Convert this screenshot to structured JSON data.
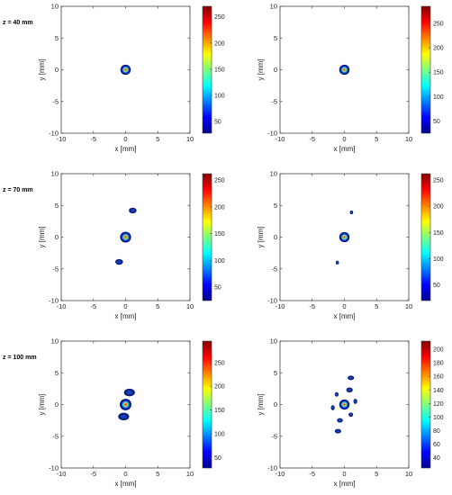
{
  "chart_data": [
    {
      "type": "heatmap",
      "row_label": "z = 40 mm",
      "xlabel": "x [mm]",
      "ylabel": "y [mm]",
      "xlim": [
        -10,
        10
      ],
      "ylim": [
        -10,
        10
      ],
      "xticks": [
        -10,
        -5,
        0,
        5,
        10
      ],
      "yticks": [
        -10,
        -5,
        0,
        5,
        10
      ],
      "colorbar": {
        "min": 28,
        "max": 270,
        "ticks": [
          50,
          100,
          150,
          200,
          250
        ]
      },
      "spots": [
        {
          "x": 0,
          "y": 0,
          "rx": 0.8,
          "ry": 0.8,
          "peak": true
        }
      ]
    },
    {
      "type": "heatmap",
      "row_label": "",
      "xlabel": "x [mm]",
      "ylabel": "y [mm]",
      "xlim": [
        -10,
        10
      ],
      "ylim": [
        -10,
        10
      ],
      "xticks": [
        -10,
        -5,
        0,
        5,
        10
      ],
      "yticks": [
        -10,
        -5,
        0,
        5,
        10
      ],
      "colorbar": {
        "min": 25,
        "max": 285,
        "ticks": [
          50,
          100,
          150,
          200,
          250
        ]
      },
      "spots": [
        {
          "x": 0,
          "y": 0,
          "rx": 0.8,
          "ry": 0.8,
          "peak": true
        }
      ]
    },
    {
      "type": "heatmap",
      "row_label": "z = 70 mm",
      "xlabel": "x [mm]",
      "ylabel": "y [mm]",
      "xlim": [
        -10,
        10
      ],
      "ylim": [
        -10,
        10
      ],
      "xticks": [
        -10,
        -5,
        0,
        5,
        10
      ],
      "yticks": [
        -10,
        -5,
        0,
        5,
        10
      ],
      "colorbar": {
        "min": 25,
        "max": 262,
        "ticks": [
          50,
          100,
          150,
          200,
          250
        ]
      },
      "spots": [
        {
          "x": 0,
          "y": 0,
          "rx": 0.85,
          "ry": 0.85,
          "peak": true
        },
        {
          "x": 1.1,
          "y": 4.2,
          "rx": 0.6,
          "ry": 0.45,
          "peak": false
        },
        {
          "x": -1.0,
          "y": -3.9,
          "rx": 0.6,
          "ry": 0.45,
          "peak": false
        }
      ]
    },
    {
      "type": "heatmap",
      "row_label": "",
      "xlabel": "x [mm]",
      "ylabel": "y [mm]",
      "xlim": [
        -10,
        10
      ],
      "ylim": [
        -10,
        10
      ],
      "xticks": [
        -10,
        -5,
        0,
        5,
        10
      ],
      "yticks": [
        -10,
        -5,
        0,
        5,
        10
      ],
      "colorbar": {
        "min": 20,
        "max": 262,
        "ticks": [
          50,
          100,
          150,
          200,
          250
        ]
      },
      "spots": [
        {
          "x": 0,
          "y": 0,
          "rx": 0.8,
          "ry": 0.8,
          "peak": true
        },
        {
          "x": 1.1,
          "y": 3.9,
          "rx": 0.25,
          "ry": 0.3,
          "peak": false
        },
        {
          "x": -1.1,
          "y": -4.0,
          "rx": 0.25,
          "ry": 0.3,
          "peak": false
        }
      ]
    },
    {
      "type": "heatmap",
      "row_label": "z = 100 mm",
      "xlabel": "x [mm]",
      "ylabel": "y [mm]",
      "xlim": [
        -10,
        10
      ],
      "ylim": [
        -10,
        10
      ],
      "xticks": [
        -10,
        -5,
        0,
        5,
        10
      ],
      "yticks": [
        -10,
        -5,
        0,
        5,
        10
      ],
      "colorbar": {
        "min": 28,
        "max": 295,
        "ticks": [
          50,
          100,
          150,
          200,
          250
        ]
      },
      "spots": [
        {
          "x": 0,
          "y": 0,
          "rx": 0.9,
          "ry": 0.9,
          "peak": true
        },
        {
          "x": 0.6,
          "y": 1.9,
          "rx": 0.85,
          "ry": 0.6,
          "peak": false
        },
        {
          "x": -0.3,
          "y": -1.9,
          "rx": 0.85,
          "ry": 0.6,
          "peak": false
        }
      ]
    },
    {
      "type": "heatmap",
      "row_label": "",
      "xlabel": "x [mm]",
      "ylabel": "y [mm]",
      "xlim": [
        -10,
        10
      ],
      "ylim": [
        -10,
        10
      ],
      "xticks": [
        -10,
        -5,
        0,
        5,
        10
      ],
      "yticks": [
        -10,
        -5,
        0,
        5,
        10
      ],
      "colorbar": {
        "min": 25,
        "max": 212,
        "ticks": [
          40,
          60,
          80,
          100,
          120,
          140,
          160,
          180,
          200
        ]
      },
      "spots": [
        {
          "x": 0,
          "y": 0,
          "rx": 0.8,
          "ry": 0.8,
          "peak": true
        },
        {
          "x": 1.0,
          "y": 4.2,
          "rx": 0.5,
          "ry": 0.35,
          "peak": false
        },
        {
          "x": 0.8,
          "y": 2.3,
          "rx": 0.5,
          "ry": 0.4,
          "peak": false
        },
        {
          "x": -1.2,
          "y": 1.6,
          "rx": 0.3,
          "ry": 0.35,
          "peak": false
        },
        {
          "x": -1.8,
          "y": -0.5,
          "rx": 0.3,
          "ry": 0.4,
          "peak": false
        },
        {
          "x": 1.7,
          "y": 0.5,
          "rx": 0.3,
          "ry": 0.4,
          "peak": false
        },
        {
          "x": 1.0,
          "y": -1.6,
          "rx": 0.35,
          "ry": 0.35,
          "peak": false
        },
        {
          "x": -0.7,
          "y": -2.5,
          "rx": 0.45,
          "ry": 0.35,
          "peak": false
        },
        {
          "x": -1.0,
          "y": -4.2,
          "rx": 0.5,
          "ry": 0.35,
          "peak": false
        }
      ]
    }
  ]
}
